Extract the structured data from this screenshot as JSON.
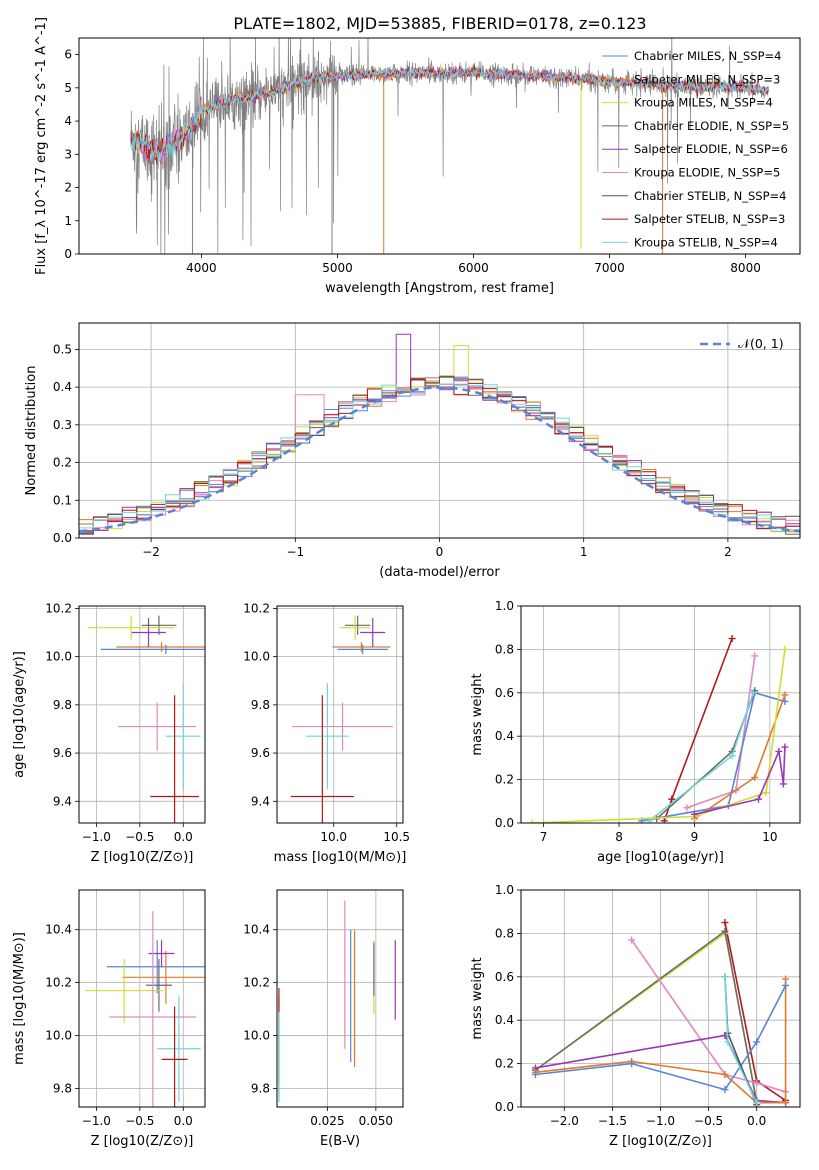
{
  "figure": {
    "title": "PLATE=1802, MJD=53885, FIBERID=0178, z=0.123"
  },
  "colors": {
    "c_miles": "#5b84d6",
    "s_miles": "#e07a2c",
    "k_miles": "#d4dc32",
    "c_elodie": "#6b6b6b",
    "s_elodie": "#9b37b5",
    "k_elodie": "#e386c2",
    "c_stelib": "#555555",
    "s_stelib": "#b01a1a",
    "k_stelib": "#6dd7dc"
  },
  "chart_data": [
    {
      "id": "spectrum",
      "type": "line",
      "xlabel": "wavelength [Angstrom, rest frame]",
      "ylabel": "Flux [f_λ 10^-17 erg cm^-2 s^-1 A^-1]",
      "xlim": [
        3100,
        8400
      ],
      "ylim": [
        0,
        6.5
      ],
      "xticks": [
        4000,
        5000,
        6000,
        7000,
        8000
      ],
      "yticks": [
        0,
        1,
        2,
        3,
        4,
        5,
        6
      ],
      "grid": false,
      "legend_position": "top-right",
      "legend": [
        {
          "label": "Chabrier MILES, N_SSP=4",
          "color_key": "c_miles"
        },
        {
          "label": "Salpeter MILES, N_SSP=3",
          "color_key": "s_miles"
        },
        {
          "label": "Kroupa MILES, N_SSP=4",
          "color_key": "k_miles"
        },
        {
          "label": "Chabrier ELODIE, N_SSP=5",
          "color_key": "c_elodie"
        },
        {
          "label": "Salpeter ELODIE, N_SSP=6",
          "color_key": "s_elodie"
        },
        {
          "label": "Kroupa ELODIE, N_SSP=5",
          "color_key": "k_elodie"
        },
        {
          "label": "Chabrier STELIB, N_SSP=4",
          "color_key": "c_stelib"
        },
        {
          "label": "Salpeter STELIB, N_SSP=3",
          "color_key": "s_stelib"
        },
        {
          "label": "Kroupa STELIB, N_SSP=4",
          "color_key": "k_stelib"
        }
      ],
      "continuum": [
        [
          3480,
          3.5
        ],
        [
          3600,
          3.2
        ],
        [
          3700,
          3.0
        ],
        [
          3800,
          3.4
        ],
        [
          3900,
          3.6
        ],
        [
          4000,
          4.3
        ],
        [
          4200,
          4.6
        ],
        [
          4500,
          4.85
        ],
        [
          4800,
          5.3
        ],
        [
          5000,
          5.35
        ],
        [
          5500,
          5.45
        ],
        [
          6000,
          5.45
        ],
        [
          6500,
          5.35
        ],
        [
          7000,
          5.2
        ],
        [
          7500,
          5.05
        ],
        [
          8000,
          5.0
        ],
        [
          8170,
          4.9
        ]
      ],
      "features": [
        {
          "x": 3934,
          "y": 0.0
        },
        {
          "x": 4861,
          "y": 6.1
        },
        {
          "x": 4960,
          "y": 0.0
        },
        {
          "x": 5340,
          "y": 0.0
        },
        {
          "x": 6790,
          "y": 0.15
        },
        {
          "x": 7390,
          "y": 0.0
        }
      ]
    },
    {
      "id": "residuals",
      "type": "histogram",
      "xlabel": "(data-model)/error",
      "ylabel": "Normed distribution",
      "xlim": [
        -2.5,
        2.5
      ],
      "ylim": [
        0,
        0.57
      ],
      "xticks": [
        -2,
        -1,
        0,
        1,
        2
      ],
      "yticks": [
        0.0,
        0.1,
        0.2,
        0.3,
        0.4,
        0.5
      ],
      "grid": true,
      "legend_position": "top-right",
      "reference_label": "𝒩(0, 1)",
      "bin_width": 0.1,
      "peak_bins": [
        {
          "x": -0.25,
          "y": 0.54,
          "color_key": "s_elodie"
        },
        {
          "x": 0.15,
          "y": 0.51,
          "color_key": "k_miles"
        },
        {
          "x": -0.9,
          "y": 0.38,
          "color_key": "k_elodie"
        }
      ]
    },
    {
      "id": "age-vs-Z",
      "type": "scatter",
      "xlabel": "Z [log10(Z/Z⊙)]",
      "ylabel": "age  [log10(age/yr)]",
      "xlim": [
        -1.2,
        0.25
      ],
      "ylim": [
        9.31,
        10.21
      ],
      "xticks": [
        -1.0,
        -0.5,
        0.0
      ],
      "yticks": [
        9.4,
        9.6,
        9.8,
        10.0,
        10.2
      ],
      "grid": true,
      "points": [
        {
          "x": -0.2,
          "y": 10.03,
          "xerr": 0.75,
          "yerr": 0.02,
          "color_key": "c_miles"
        },
        {
          "x": -0.25,
          "y": 10.04,
          "xerr": 0.52,
          "yerr": 0.02,
          "color_key": "s_miles"
        },
        {
          "x": -0.28,
          "y": 10.13,
          "xerr": 0.2,
          "yerr": 0.04,
          "color_key": "c_elodie"
        },
        {
          "x": -0.4,
          "y": 10.1,
          "xerr": 0.2,
          "yerr": 0.06,
          "color_key": "s_elodie"
        },
        {
          "x": -0.6,
          "y": 10.12,
          "xerr": 0.5,
          "yerr": 0.05,
          "color_key": "k_miles"
        },
        {
          "x": -0.3,
          "y": 9.71,
          "xerr": 0.45,
          "yerr": 0.1,
          "color_key": "k_elodie"
        },
        {
          "x": 0.0,
          "y": 9.67,
          "xerr": 0.2,
          "yerr": 0.22,
          "color_key": "k_stelib"
        },
        {
          "x": -0.1,
          "y": 9.42,
          "xerr": 0.28,
          "yerr": 0.42,
          "color_key": "s_stelib"
        }
      ]
    },
    {
      "id": "age-vs-mass",
      "type": "scatter",
      "xlabel": "mass [log10(M/M⊙)]",
      "ylabel": "",
      "xlim": [
        9.55,
        10.55
      ],
      "ylim": [
        9.31,
        10.21
      ],
      "xticks": [
        10.0,
        10.5
      ],
      "yticks": [
        9.4,
        9.6,
        9.8,
        10.0,
        10.2
      ],
      "grid": true,
      "points": [
        {
          "x": 10.23,
          "y": 10.03,
          "xerr": 0.2,
          "yerr": 0.02,
          "color_key": "c_miles"
        },
        {
          "x": 10.22,
          "y": 10.04,
          "xerr": 0.23,
          "yerr": 0.02,
          "color_key": "s_miles"
        },
        {
          "x": 10.19,
          "y": 10.13,
          "xerr": 0.1,
          "yerr": 0.04,
          "color_key": "c_elodie"
        },
        {
          "x": 10.31,
          "y": 10.1,
          "xerr": 0.1,
          "yerr": 0.06,
          "color_key": "s_elodie"
        },
        {
          "x": 10.17,
          "y": 10.12,
          "xerr": 0.12,
          "yerr": 0.05,
          "color_key": "k_miles"
        },
        {
          "x": 10.07,
          "y": 9.71,
          "xerr": 0.4,
          "yerr": 0.1,
          "color_key": "k_elodie"
        },
        {
          "x": 9.95,
          "y": 9.67,
          "xerr": 0.17,
          "yerr": 0.22,
          "color_key": "k_stelib"
        },
        {
          "x": 9.91,
          "y": 9.42,
          "xerr": 0.25,
          "yerr": 0.42,
          "color_key": "s_stelib"
        }
      ]
    },
    {
      "id": "weight-vs-age",
      "type": "line",
      "xlabel": "age  [log10(age/yr)]",
      "ylabel": "mass weight",
      "xlim": [
        6.7,
        10.4
      ],
      "ylim": [
        0,
        1.0
      ],
      "xticks": [
        7,
        8,
        9,
        10
      ],
      "yticks": [
        0.0,
        0.2,
        0.4,
        0.6,
        0.8,
        1.0
      ],
      "grid": true,
      "series": [
        {
          "color_key": "s_stelib",
          "x": [
            8.6,
            8.7,
            9.5
          ],
          "y": [
            0.01,
            0.11,
            0.85
          ]
        },
        {
          "color_key": "k_elodie",
          "x": [
            8.9,
            9.55,
            9.8
          ],
          "y": [
            0.07,
            0.15,
            0.77
          ]
        },
        {
          "color_key": "c_miles",
          "x": [
            8.3,
            9.45,
            9.8,
            10.2
          ],
          "y": [
            0.01,
            0.08,
            0.6,
            0.56
          ]
        },
        {
          "color_key": "c_elodie",
          "x": [
            8.5,
            9.5,
            9.8
          ],
          "y": [
            0.02,
            0.33,
            0.61
          ]
        },
        {
          "color_key": "k_stelib",
          "x": [
            8.4,
            9.5,
            9.78
          ],
          "y": [
            0.01,
            0.31,
            0.6
          ]
        },
        {
          "color_key": "s_miles",
          "x": [
            9.0,
            9.8,
            10.2
          ],
          "y": [
            0.02,
            0.21,
            0.59
          ]
        },
        {
          "color_key": "k_miles",
          "x": [
            6.85,
            9.0,
            9.95,
            10.2
          ],
          "y": [
            0.0,
            0.03,
            0.14,
            0.8
          ]
        },
        {
          "color_key": "s_elodie",
          "x": [
            9.0,
            9.85,
            10.12,
            10.18,
            10.2
          ],
          "y": [
            0.04,
            0.11,
            0.33,
            0.18,
            0.35
          ]
        }
      ]
    },
    {
      "id": "mass-vs-Z",
      "type": "scatter",
      "xlabel": "Z [log10(Z/Z⊙)]",
      "ylabel": "mass [log10(M/M⊙)]",
      "xlim": [
        -1.2,
        0.25
      ],
      "ylim": [
        9.73,
        10.55
      ],
      "xticks": [
        -1.0,
        -0.5,
        0.0
      ],
      "yticks": [
        9.8,
        10.0,
        10.2,
        10.4
      ],
      "grid": true,
      "points": [
        {
          "x": -0.3,
          "y": 10.26,
          "xerr": 0.58,
          "yerr": 0.1,
          "color_key": "c_miles"
        },
        {
          "x": -0.2,
          "y": 10.22,
          "xerr": 0.5,
          "yerr": 0.1,
          "color_key": "s_miles"
        },
        {
          "x": -0.28,
          "y": 10.19,
          "xerr": 0.15,
          "yerr": 0.1,
          "color_key": "c_elodie"
        },
        {
          "x": -0.25,
          "y": 10.31,
          "xerr": 0.15,
          "yerr": 0.05,
          "color_key": "s_elodie"
        },
        {
          "x": -0.68,
          "y": 10.17,
          "xerr": 0.45,
          "yerr": 0.12,
          "color_key": "k_miles"
        },
        {
          "x": -0.35,
          "y": 10.07,
          "xerr": 0.5,
          "yerr": 0.4,
          "color_key": "k_elodie"
        },
        {
          "x": -0.05,
          "y": 9.95,
          "xerr": 0.25,
          "yerr": 0.2,
          "color_key": "k_stelib"
        },
        {
          "x": -0.1,
          "y": 9.91,
          "xerr": 0.15,
          "yerr": 0.2,
          "color_key": "s_stelib"
        }
      ]
    },
    {
      "id": "mass-vs-EBV",
      "type": "scatter",
      "xlabel": "E(B-V)",
      "ylabel": "",
      "xlim": [
        -0.001,
        0.064
      ],
      "ylim": [
        9.73,
        10.55
      ],
      "xticks": [
        0.025,
        0.05
      ],
      "yticks": [
        9.8,
        10.0,
        10.2,
        10.4
      ],
      "grid": true,
      "points": [
        {
          "x": 0.0,
          "y": 9.95,
          "yerr": 0.2,
          "color_key": "c_elodie"
        },
        {
          "x": 0.0,
          "y": 10.0,
          "yerr": 0.18,
          "color_key": "s_stelib"
        },
        {
          "x": 0.0,
          "y": 9.92,
          "yerr": 0.17,
          "color_key": "k_stelib"
        },
        {
          "x": 0.034,
          "y": 10.23,
          "yerr": 0.28,
          "color_key": "k_elodie"
        },
        {
          "x": 0.037,
          "y": 10.15,
          "yerr": 0.25,
          "color_key": "c_miles"
        },
        {
          "x": 0.039,
          "y": 10.14,
          "yerr": 0.26,
          "color_key": "s_miles"
        },
        {
          "x": 0.049,
          "y": 10.22,
          "yerr": 0.14,
          "color_key": "k_miles"
        },
        {
          "x": 0.049,
          "y": 10.25,
          "yerr": 0.1,
          "color_key": "c_elodie"
        },
        {
          "x": 0.06,
          "y": 10.21,
          "yerr": 0.15,
          "color_key": "s_elodie"
        }
      ]
    },
    {
      "id": "weight-vs-Z",
      "type": "line",
      "xlabel": "Z [log10(Z/Z⊙)]",
      "ylabel": "mass weight",
      "xlim": [
        -2.45,
        0.45
      ],
      "ylim": [
        0,
        1.0
      ],
      "xticks": [
        -2.0,
        -1.5,
        -1.0,
        -0.5,
        0.0
      ],
      "yticks": [
        0.0,
        0.2,
        0.4,
        0.6,
        0.8,
        1.0
      ],
      "grid": true,
      "series": [
        {
          "color_key": "s_stelib",
          "x": [
            -0.33,
            0.0,
            0.3
          ],
          "y": [
            0.85,
            0.12,
            0.03
          ]
        },
        {
          "color_key": "k_miles",
          "x": [
            -2.3,
            -0.33,
            0.0,
            0.3
          ],
          "y": [
            0.17,
            0.8,
            0.03,
            0.02
          ]
        },
        {
          "color_key": "c_elodie",
          "x": [
            -2.3,
            -0.33,
            0.0
          ],
          "y": [
            0.17,
            0.81,
            0.02
          ]
        },
        {
          "color_key": "k_elodie",
          "x": [
            -1.3,
            -0.33,
            0.0,
            0.3
          ],
          "y": [
            0.77,
            0.15,
            0.11,
            0.07
          ]
        },
        {
          "color_key": "s_elodie",
          "x": [
            -2.3,
            -0.33,
            0.0,
            0.3
          ],
          "y": [
            0.18,
            0.33,
            0.03,
            0.02
          ]
        },
        {
          "color_key": "s_miles",
          "x": [
            -2.3,
            -1.3,
            -0.33,
            0.0,
            0.3,
            0.3
          ],
          "y": [
            0.16,
            0.21,
            0.15,
            0.02,
            0.02,
            0.59
          ]
        },
        {
          "color_key": "c_miles",
          "x": [
            -2.3,
            -1.3,
            -0.33,
            0.0,
            0.3
          ],
          "y": [
            0.15,
            0.2,
            0.08,
            0.3,
            0.56
          ]
        },
        {
          "color_key": "c_stelib",
          "x": [
            -0.33,
            -0.3,
            0.0
          ],
          "y": [
            0.6,
            0.34,
            0.01
          ]
        },
        {
          "color_key": "k_stelib",
          "x": [
            -0.33,
            -0.3,
            0.0
          ],
          "y": [
            0.6,
            0.3,
            0.02
          ]
        }
      ]
    }
  ]
}
